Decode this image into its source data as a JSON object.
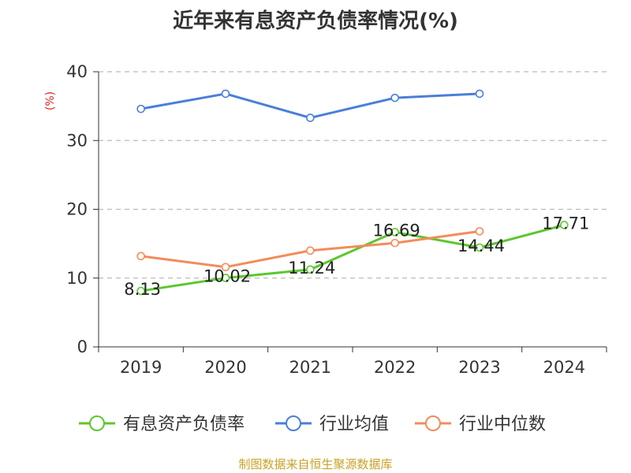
{
  "chart_data": {
    "type": "line",
    "title": "近年来有息资产负债率情况(%)",
    "ylabel": "(%)",
    "xlabel": "",
    "categories": [
      "2019",
      "2020",
      "2021",
      "2022",
      "2023",
      "2024"
    ],
    "ylim": [
      0,
      40
    ],
    "yticks": [
      0,
      10,
      20,
      30,
      40
    ],
    "grid": true,
    "legend_position": "bottom",
    "series": [
      {
        "name": "有息资产负债率",
        "color": "#5cc72e",
        "values": [
          8.13,
          10.02,
          11.24,
          16.69,
          14.44,
          17.71
        ],
        "labels": [
          "8.13",
          "10.02",
          "11.24",
          "16.69",
          "14.44",
          "17.71"
        ]
      },
      {
        "name": "行业均值",
        "color": "#4a7fd8",
        "values": [
          34.6,
          36.8,
          33.3,
          36.2,
          36.8,
          null
        ]
      },
      {
        "name": "行业中位数",
        "color": "#f28c5a",
        "values": [
          13.2,
          11.6,
          14.0,
          15.1,
          16.8,
          null
        ]
      }
    ],
    "unit_color": "#e02020"
  },
  "footer": {
    "source": "制图数据来自恒生聚源数据库"
  }
}
